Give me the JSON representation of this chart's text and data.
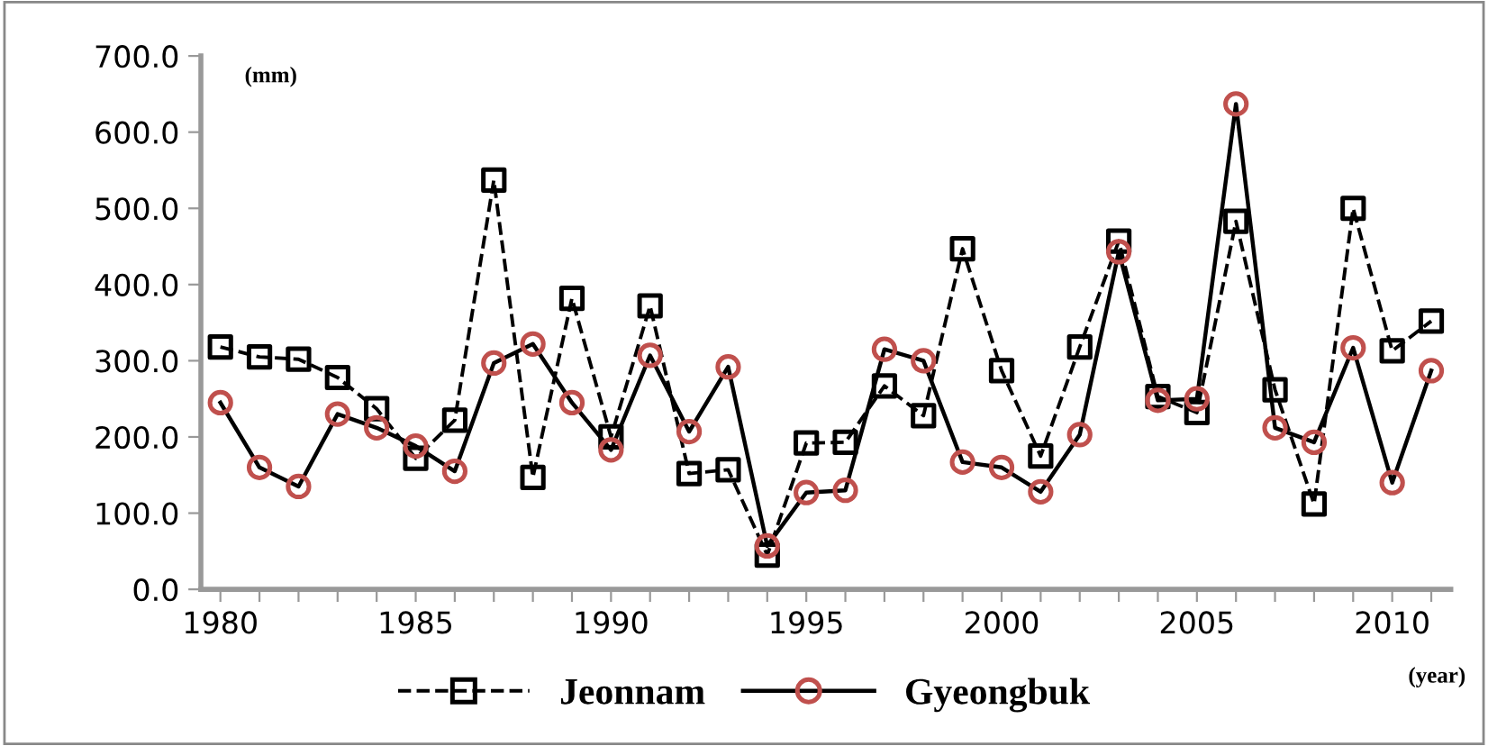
{
  "chart_data": {
    "type": "line",
    "x": [
      1980,
      1981,
      1982,
      1983,
      1984,
      1985,
      1986,
      1987,
      1988,
      1989,
      1990,
      1991,
      1992,
      1993,
      1994,
      1995,
      1996,
      1997,
      1998,
      1999,
      2000,
      2001,
      2002,
      2003,
      2004,
      2005,
      2006,
      2007,
      2008,
      2009,
      2010,
      2011
    ],
    "series": [
      {
        "name": "Jeonnam",
        "color": "#000000",
        "marker": "square",
        "line_style": "dashed",
        "values": [
          318,
          305,
          302,
          278,
          237,
          172,
          222,
          537,
          147,
          382,
          200,
          372,
          152,
          157,
          45,
          192,
          193,
          267,
          228,
          447,
          287,
          175,
          318,
          457,
          253,
          232,
          483,
          262,
          112,
          500,
          313,
          352
        ]
      },
      {
        "name": "Gyeongbuk",
        "color": "#000000",
        "marker": "circle",
        "line_style": "solid",
        "colors": [
          "#c0504d",
          "#c0504d",
          "#c0504d",
          "#c0504d",
          "#c0504d",
          "#c0504d",
          "#c0504d",
          "#c0504d",
          "#c0504d",
          "#c0504d",
          "#c0504d",
          "#c0504d",
          "#c0504d",
          "#c0504d",
          "#c0504d",
          "#c0504d",
          "#c0504d",
          "#c0504d",
          "#c0504d",
          "#c0504d",
          "#c0504d",
          "#c0504d",
          "#c0504d",
          "#c0504d",
          "#c0504d",
          "#c0504d",
          "#c0504d",
          "#c0504d",
          "#c0504d",
          "#c0504d",
          "#c0504d",
          "#c0504d"
        ],
        "values": [
          245,
          160,
          135,
          230,
          212,
          188,
          155,
          297,
          322,
          245,
          183,
          307,
          207,
          292,
          57,
          127,
          130,
          315,
          300,
          167,
          160,
          128,
          203,
          443,
          248,
          250,
          637,
          212,
          193,
          317,
          140,
          287
        ]
      }
    ],
    "ylabel": "(mm)",
    "xlabel": "(year)",
    "xlim": [
      1979.5,
      2011.5
    ],
    "xticks": [
      1980,
      {
        "value": 1981,
        "label": null
      },
      {
        "value": 1982,
        "label": null
      },
      {
        "value": 1983,
        "label": null
      },
      {
        "value": 1984,
        "label": null
      },
      1985,
      {
        "value": 1986,
        "label": null
      },
      {
        "value": 1987,
        "label": null
      },
      {
        "value": 1988,
        "label": null
      },
      {
        "value": 1989,
        "label": null
      },
      1990,
      {
        "value": 1991,
        "label": null
      },
      {
        "value": 1992,
        "label": null
      },
      {
        "value": 1993,
        "label": null
      },
      {
        "value": 1994,
        "label": null
      },
      1995,
      {
        "value": 1996,
        "label": null
      },
      {
        "value": 1997,
        "label": null
      },
      {
        "value": 1998,
        "label": null
      },
      {
        "value": 1999,
        "label": null
      },
      2000,
      {
        "value": 2001,
        "label": null
      },
      {
        "value": 2002,
        "label": null
      },
      {
        "value": 2003,
        "label": null
      },
      {
        "value": 2004,
        "label": null
      },
      2005,
      {
        "value": 2006,
        "label": null
      },
      {
        "value": 2007,
        "label": null
      },
      {
        "value": 2008,
        "label": null
      },
      {
        "value": 2009,
        "label": null
      },
      2010,
      {
        "value": 2011,
        "label": null
      }
    ],
    "ylim": [
      0,
      700
    ],
    "yticks": [
      {
        "value": 0,
        "label": "0.0"
      },
      {
        "value": 100,
        "label": "100.0"
      },
      {
        "value": 200,
        "label": "200.0"
      },
      {
        "value": 300,
        "label": "300.0"
      },
      {
        "value": 400,
        "label": "400.0"
      },
      {
        "value": 500,
        "label": "500.0"
      },
      {
        "value": 600,
        "label": "600.0"
      },
      {
        "value": 700,
        "label": "700.0"
      }
    ],
    "grid": false,
    "legend": "bottom"
  }
}
